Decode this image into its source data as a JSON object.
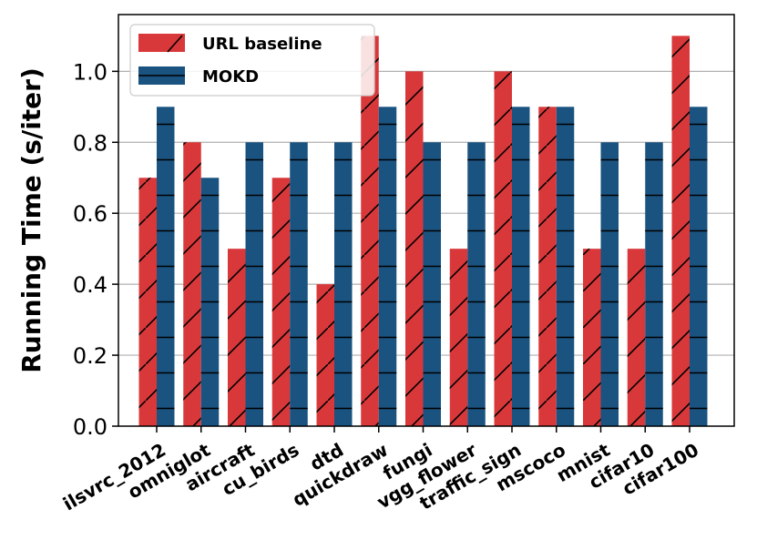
{
  "chart_data": {
    "type": "bar",
    "ylabel": "Running Time (s/iter)",
    "xlabel": "",
    "ylim": [
      0,
      1.16
    ],
    "yticks": [
      0.0,
      0.2,
      0.4,
      0.6,
      0.8,
      1.0
    ],
    "ytick_labels": [
      "0.0",
      "0.2",
      "0.4",
      "0.6",
      "0.8",
      "1.0"
    ],
    "grid": "horizontal",
    "legend_position": "top-left",
    "categories": [
      "ilsvrc_2012",
      "omniglot",
      "aircraft",
      "cu_birds",
      "dtd",
      "quickdraw",
      "fungi",
      "vgg_flower",
      "traffic_sign",
      "mscoco",
      "mnist",
      "cifar10",
      "cifar100"
    ],
    "series": [
      {
        "name": "URL baseline",
        "color": "#d9383a",
        "hatch": "diagonal",
        "values": [
          0.7,
          0.8,
          0.5,
          0.7,
          0.4,
          1.1,
          1.0,
          0.5,
          1.0,
          0.9,
          0.5,
          0.5,
          1.1
        ]
      },
      {
        "name": "MOKD",
        "color": "#1a5380",
        "hatch": "horizontal",
        "values": [
          0.9,
          0.7,
          0.8,
          0.8,
          0.8,
          0.9,
          0.8,
          0.8,
          0.9,
          0.9,
          0.8,
          0.8,
          0.9
        ]
      }
    ]
  }
}
